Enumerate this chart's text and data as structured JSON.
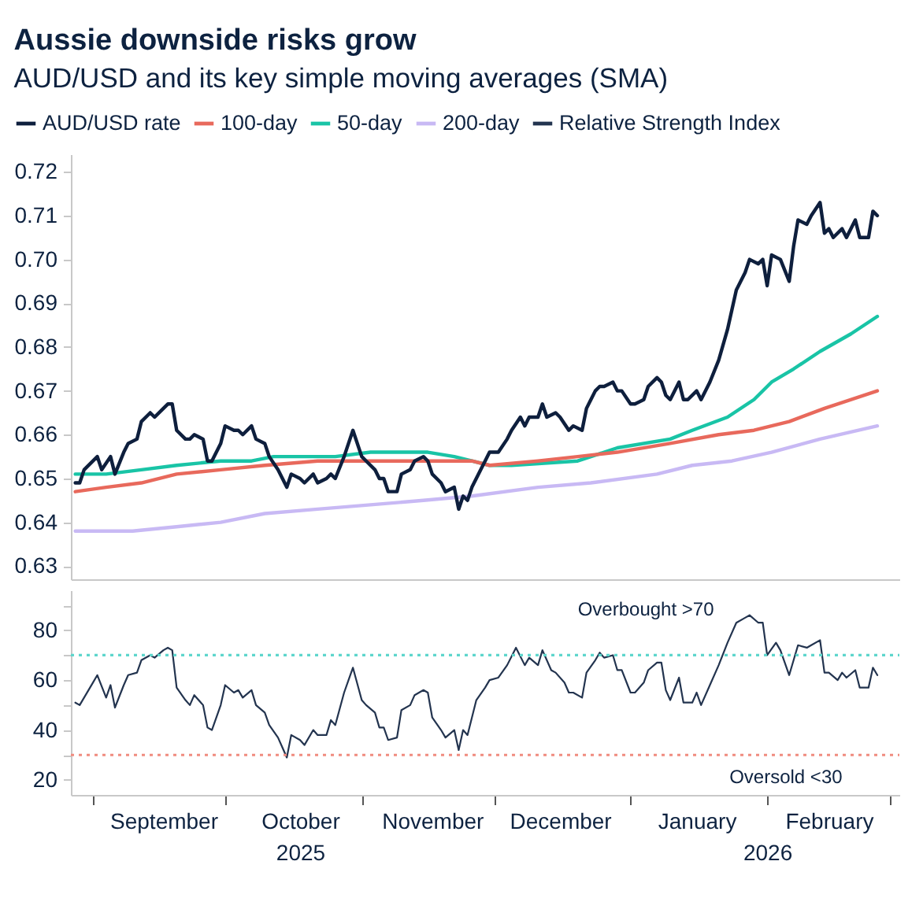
{
  "chart_data": [
    {
      "type": "line",
      "title": "Aussie downside risks grow",
      "subtitle": "AUD/USD and its key simple moving averages (SMA)",
      "legend": "top left",
      "tick_labels": "y",
      "xlim": [
        "2025-08-27",
        "2026-03-03"
      ],
      "ylim": [
        0.627,
        0.724
      ],
      "yticks": [
        0.63,
        0.64,
        0.65,
        0.66,
        0.67,
        0.68,
        0.69,
        {
          "value": 0.7,
          "label": "0.70"
        },
        0.71,
        0.72
      ],
      "series": [
        {
          "name": "AUD/USD rate",
          "color": "#0e1f3d",
          "x": [
            "2025-08-28",
            "2025-08-29",
            "2025-08-30",
            "2025-09-02",
            "2025-09-03",
            "2025-09-05",
            "2025-09-06",
            "2025-09-08",
            "2025-09-09",
            "2025-09-11",
            "2025-09-12",
            "2025-09-14",
            "2025-09-15",
            "2025-09-17",
            "2025-09-18",
            "2025-09-19",
            "2025-09-20",
            "2025-09-22",
            "2025-09-23",
            "2025-09-24",
            "2025-09-26",
            "2025-09-27",
            "2025-09-28",
            "2025-09-30",
            "2025-10-01",
            "2025-10-03",
            "2025-10-04",
            "2025-10-05",
            "2025-10-07",
            "2025-10-08",
            "2025-10-10",
            "2025-10-11",
            "2025-10-13",
            "2025-10-15",
            "2025-10-16",
            "2025-10-18",
            "2025-10-19",
            "2025-10-21",
            "2025-10-22",
            "2025-10-24",
            "2025-10-25",
            "2025-10-26",
            "2025-10-28",
            "2025-10-29",
            "2025-10-30",
            "2025-11-01",
            "2025-11-02",
            "2025-11-04",
            "2025-11-05",
            "2025-11-06",
            "2025-11-07",
            "2025-11-09",
            "2025-11-10",
            "2025-11-12",
            "2025-11-13",
            "2025-11-15",
            "2025-11-16",
            "2025-11-17",
            "2025-11-19",
            "2025-11-20",
            "2025-11-22",
            "2025-11-23",
            "2025-11-24",
            "2025-11-25",
            "2025-11-26",
            "2025-11-28",
            "2025-11-29",
            "2025-11-30",
            "2025-12-02",
            "2025-12-04",
            "2025-12-05",
            "2025-12-07",
            "2025-12-08",
            "2025-12-09",
            "2025-12-11",
            "2025-12-12",
            "2025-12-13",
            "2025-12-15",
            "2025-12-16",
            "2025-12-18",
            "2025-12-19",
            "2025-12-21",
            "2025-12-22",
            "2025-12-24",
            "2025-12-25",
            "2025-12-26",
            "2025-12-28",
            "2025-12-29",
            "2025-12-30",
            "2026-01-01",
            "2026-01-02",
            "2026-01-04",
            "2026-01-05",
            "2026-01-07",
            "2026-01-08",
            "2026-01-09",
            "2026-01-10",
            "2026-01-12",
            "2026-01-13",
            "2026-01-14",
            "2026-01-16",
            "2026-01-17",
            "2026-01-19",
            "2026-01-21",
            "2026-01-23",
            "2026-01-25",
            "2026-01-27",
            "2026-01-28",
            "2026-01-30",
            "2026-01-31",
            "2026-02-01",
            "2026-02-02",
            "2026-02-04",
            "2026-02-06",
            "2026-02-07",
            "2026-02-08",
            "2026-02-10",
            "2026-02-11",
            "2026-02-13",
            "2026-02-14",
            "2026-02-15",
            "2026-02-16",
            "2026-02-18",
            "2026-02-19",
            "2026-02-21",
            "2026-02-22",
            "2026-02-24",
            "2026-02-25",
            "2026-02-26"
          ],
          "values": [
            0.649,
            0.649,
            0.652,
            0.655,
            0.652,
            0.655,
            0.651,
            0.656,
            0.658,
            0.659,
            0.663,
            0.665,
            0.664,
            0.666,
            0.667,
            0.667,
            0.661,
            0.659,
            0.659,
            0.66,
            0.659,
            0.654,
            0.654,
            0.658,
            0.662,
            0.661,
            0.661,
            0.66,
            0.662,
            0.659,
            0.658,
            0.655,
            0.652,
            0.648,
            0.651,
            0.65,
            0.649,
            0.651,
            0.649,
            0.65,
            0.651,
            0.65,
            0.655,
            0.658,
            0.661,
            0.655,
            0.654,
            0.652,
            0.65,
            0.65,
            0.647,
            0.647,
            0.651,
            0.652,
            0.654,
            0.655,
            0.654,
            0.651,
            0.649,
            0.647,
            0.648,
            0.643,
            0.646,
            0.645,
            0.648,
            0.652,
            0.654,
            0.656,
            0.656,
            0.659,
            0.661,
            0.664,
            0.662,
            0.664,
            0.664,
            0.667,
            0.664,
            0.665,
            0.664,
            0.661,
            0.662,
            0.661,
            0.666,
            0.67,
            0.671,
            0.671,
            0.672,
            0.67,
            0.67,
            0.667,
            0.667,
            0.668,
            0.671,
            0.673,
            0.672,
            0.669,
            0.668,
            0.672,
            0.668,
            0.668,
            0.67,
            0.668,
            0.672,
            0.677,
            0.684,
            0.693,
            0.697,
            0.7,
            0.699,
            0.7,
            0.694,
            0.701,
            0.7,
            0.695,
            0.703,
            0.709,
            0.708,
            0.71,
            0.713,
            0.706,
            0.707,
            0.705,
            0.707,
            0.705,
            0.709,
            0.705,
            0.705,
            0.711,
            0.71
          ]
        },
        {
          "name": "100-day",
          "color": "#e8695c",
          "x": [
            "2025-08-28",
            "2025-09-04",
            "2025-09-12",
            "2025-09-20",
            "2025-09-30",
            "2025-10-10",
            "2025-10-22",
            "2025-11-03",
            "2025-11-15",
            "2025-11-26",
            "2025-11-30",
            "2025-12-11",
            "2025-12-20",
            "2025-12-29",
            "2026-01-10",
            "2026-01-21",
            "2026-01-29",
            "2026-02-06",
            "2026-02-14",
            "2026-02-26"
          ],
          "values": [
            0.647,
            0.648,
            0.649,
            0.651,
            0.652,
            0.653,
            0.654,
            0.654,
            0.654,
            0.654,
            0.653,
            0.654,
            0.655,
            0.656,
            0.658,
            0.66,
            0.661,
            0.663,
            0.666,
            0.67
          ]
        },
        {
          "name": "50-day",
          "color": "#19c4a6",
          "x": [
            "2025-08-28",
            "2025-09-04",
            "2025-09-12",
            "2025-09-20",
            "2025-09-30",
            "2025-10-07",
            "2025-10-12",
            "2025-10-22",
            "2025-10-26",
            "2025-11-03",
            "2025-11-10",
            "2025-11-16",
            "2025-11-22",
            "2025-11-26",
            "2025-11-30",
            "2025-12-05",
            "2025-12-20",
            "2025-12-29",
            "2026-01-10",
            "2026-01-15",
            "2026-01-23",
            "2026-01-29",
            "2026-02-02",
            "2026-02-07",
            "2026-02-13",
            "2026-02-20",
            "2026-02-26"
          ],
          "values": [
            0.651,
            0.651,
            0.652,
            0.653,
            0.654,
            0.654,
            0.655,
            0.655,
            0.655,
            0.656,
            0.656,
            0.656,
            0.655,
            0.654,
            0.653,
            0.653,
            0.654,
            0.657,
            0.659,
            0.661,
            0.664,
            0.668,
            0.672,
            0.675,
            0.679,
            0.683,
            0.687
          ]
        },
        {
          "name": "200-day",
          "color": "#c8b9f4",
          "x": [
            "2025-08-28",
            "2025-09-10",
            "2025-09-20",
            "2025-09-30",
            "2025-10-10",
            "2025-10-22",
            "2025-11-03",
            "2025-11-15",
            "2025-11-26",
            "2025-12-11",
            "2025-12-23",
            "2026-01-07",
            "2026-01-15",
            "2026-01-24",
            "2026-02-02",
            "2026-02-13",
            "2026-02-26"
          ],
          "values": [
            0.638,
            0.638,
            0.639,
            0.64,
            0.642,
            0.643,
            0.644,
            0.645,
            0.646,
            0.648,
            0.649,
            0.651,
            0.653,
            0.654,
            0.656,
            0.659,
            0.662
          ]
        }
      ]
    },
    {
      "type": "line",
      "xlim": [
        "2025-08-27",
        "2026-03-03"
      ],
      "ylim": [
        14,
        96
      ],
      "xticks": [
        {
          "value": "2025-09-01",
          "label": null
        },
        {
          "value": "2025-09-17",
          "label": "September"
        },
        {
          "value": "2025-10-01",
          "label": null
        },
        {
          "value": "2025-10-18",
          "label": "October"
        },
        {
          "value": "2025-11-01",
          "label": null
        },
        {
          "value": "2025-11-17",
          "label": "November"
        },
        {
          "value": "2025-12-01",
          "label": null
        },
        {
          "value": "2025-12-16",
          "label": "December"
        },
        {
          "value": "2026-01-01",
          "label": null
        },
        {
          "value": "2026-01-16",
          "label": "January"
        },
        {
          "value": "2026-02-01",
          "label": null
        },
        {
          "value": "2026-02-15",
          "label": "February"
        },
        {
          "value": "2026-03-01",
          "label": null
        }
      ],
      "x2lim": [
        "2025-08-27",
        "2026-03-03"
      ],
      "x2ticks": [
        {
          "value": "2025-10-18",
          "label": "2025"
        },
        {
          "value": "2026-02-01",
          "label": "2026"
        }
      ],
      "yticks": [
        20,
        {
          "value": 30,
          "label": null
        },
        40,
        {
          "value": 50,
          "label": null
        },
        60,
        {
          "value": 70,
          "label": null
        },
        80,
        {
          "value": 90,
          "label": null
        }
      ],
      "ref_lines": [
        {
          "axis": "y",
          "value": 70,
          "label": "Overbought >70",
          "color": "#5ed6cc",
          "line_style": "dotted"
        },
        {
          "axis": "y",
          "value": 30,
          "label": "Oversold <30",
          "color": "#f08c80",
          "line_style": "dotted"
        }
      ],
      "series": [
        {
          "name": "Relative Strength Index",
          "color": "#23344f",
          "x": [
            "2025-08-28",
            "2025-08-29",
            "2025-08-31",
            "2025-09-01",
            "2025-09-02",
            "2025-09-04",
            "2025-09-05",
            "2025-09-06",
            "2025-09-08",
            "2025-09-09",
            "2025-09-11",
            "2025-09-12",
            "2025-09-14",
            "2025-09-15",
            "2025-09-17",
            "2025-09-18",
            "2025-09-19",
            "2025-09-20",
            "2025-09-22",
            "2025-09-23",
            "2025-09-24",
            "2025-09-26",
            "2025-09-27",
            "2025-09-28",
            "2025-09-30",
            "2025-10-01",
            "2025-10-03",
            "2025-10-04",
            "2025-10-05",
            "2025-10-07",
            "2025-10-08",
            "2025-10-10",
            "2025-10-11",
            "2025-10-13",
            "2025-10-14",
            "2025-10-15",
            "2025-10-16",
            "2025-10-18",
            "2025-10-19",
            "2025-10-21",
            "2025-10-22",
            "2025-10-24",
            "2025-10-25",
            "2025-10-26",
            "2025-10-28",
            "2025-10-29",
            "2025-10-30",
            "2025-11-01",
            "2025-11-02",
            "2025-11-04",
            "2025-11-05",
            "2025-11-06",
            "2025-11-07",
            "2025-11-09",
            "2025-11-10",
            "2025-11-12",
            "2025-11-13",
            "2025-11-15",
            "2025-11-16",
            "2025-11-17",
            "2025-11-19",
            "2025-11-20",
            "2025-11-22",
            "2025-11-23",
            "2025-11-24",
            "2025-11-25",
            "2025-11-27",
            "2025-11-29",
            "2025-11-30",
            "2025-12-02",
            "2025-12-04",
            "2025-12-06",
            "2025-12-08",
            "2025-12-09",
            "2025-12-11",
            "2025-12-12",
            "2025-12-14",
            "2025-12-15",
            "2025-12-17",
            "2025-12-18",
            "2025-12-19",
            "2025-12-21",
            "2025-12-22",
            "2025-12-24",
            "2025-12-25",
            "2025-12-26",
            "2025-12-28",
            "2025-12-29",
            "2025-12-30",
            "2026-01-01",
            "2026-01-02",
            "2026-01-04",
            "2026-01-05",
            "2026-01-07",
            "2026-01-08",
            "2026-01-09",
            "2026-01-10",
            "2026-01-12",
            "2026-01-13",
            "2026-01-15",
            "2026-01-16",
            "2026-01-17",
            "2026-01-19",
            "2026-01-21",
            "2026-01-23",
            "2026-01-25",
            "2026-01-27",
            "2026-01-28",
            "2026-01-30",
            "2026-01-31",
            "2026-02-01",
            "2026-02-03",
            "2026-02-04",
            "2026-02-06",
            "2026-02-07",
            "2026-02-08",
            "2026-02-10",
            "2026-02-11",
            "2026-02-13",
            "2026-02-14",
            "2026-02-15",
            "2026-02-17",
            "2026-02-18",
            "2026-02-19",
            "2026-02-21",
            "2026-02-22",
            "2026-02-24",
            "2026-02-25",
            "2026-02-26"
          ],
          "values": [
            51,
            50,
            56,
            59,
            62,
            53,
            58,
            49,
            58,
            62,
            63,
            68,
            70,
            69,
            72,
            73,
            72,
            57,
            52,
            50,
            54,
            50,
            41,
            40,
            50,
            58,
            55,
            56,
            53,
            56,
            50,
            47,
            42,
            37,
            33,
            29,
            38,
            36,
            34,
            40,
            38,
            38,
            44,
            42,
            55,
            60,
            65,
            52,
            50,
            47,
            41,
            41,
            36,
            37,
            48,
            50,
            54,
            56,
            55,
            45,
            40,
            37,
            40,
            32,
            40,
            38,
            52,
            57,
            60,
            61,
            66,
            73,
            66,
            69,
            66,
            72,
            64,
            63,
            59,
            55,
            55,
            53,
            63,
            68,
            71,
            69,
            70,
            64,
            64,
            55,
            55,
            59,
            64,
            67,
            67,
            56,
            52,
            61,
            51,
            51,
            55,
            50,
            58,
            66,
            75,
            83,
            85,
            86,
            83,
            83,
            70,
            75,
            72,
            62,
            68,
            74,
            73,
            74,
            76,
            63,
            63,
            60,
            63,
            61,
            64,
            57,
            57,
            65,
            62
          ]
        }
      ]
    }
  ]
}
